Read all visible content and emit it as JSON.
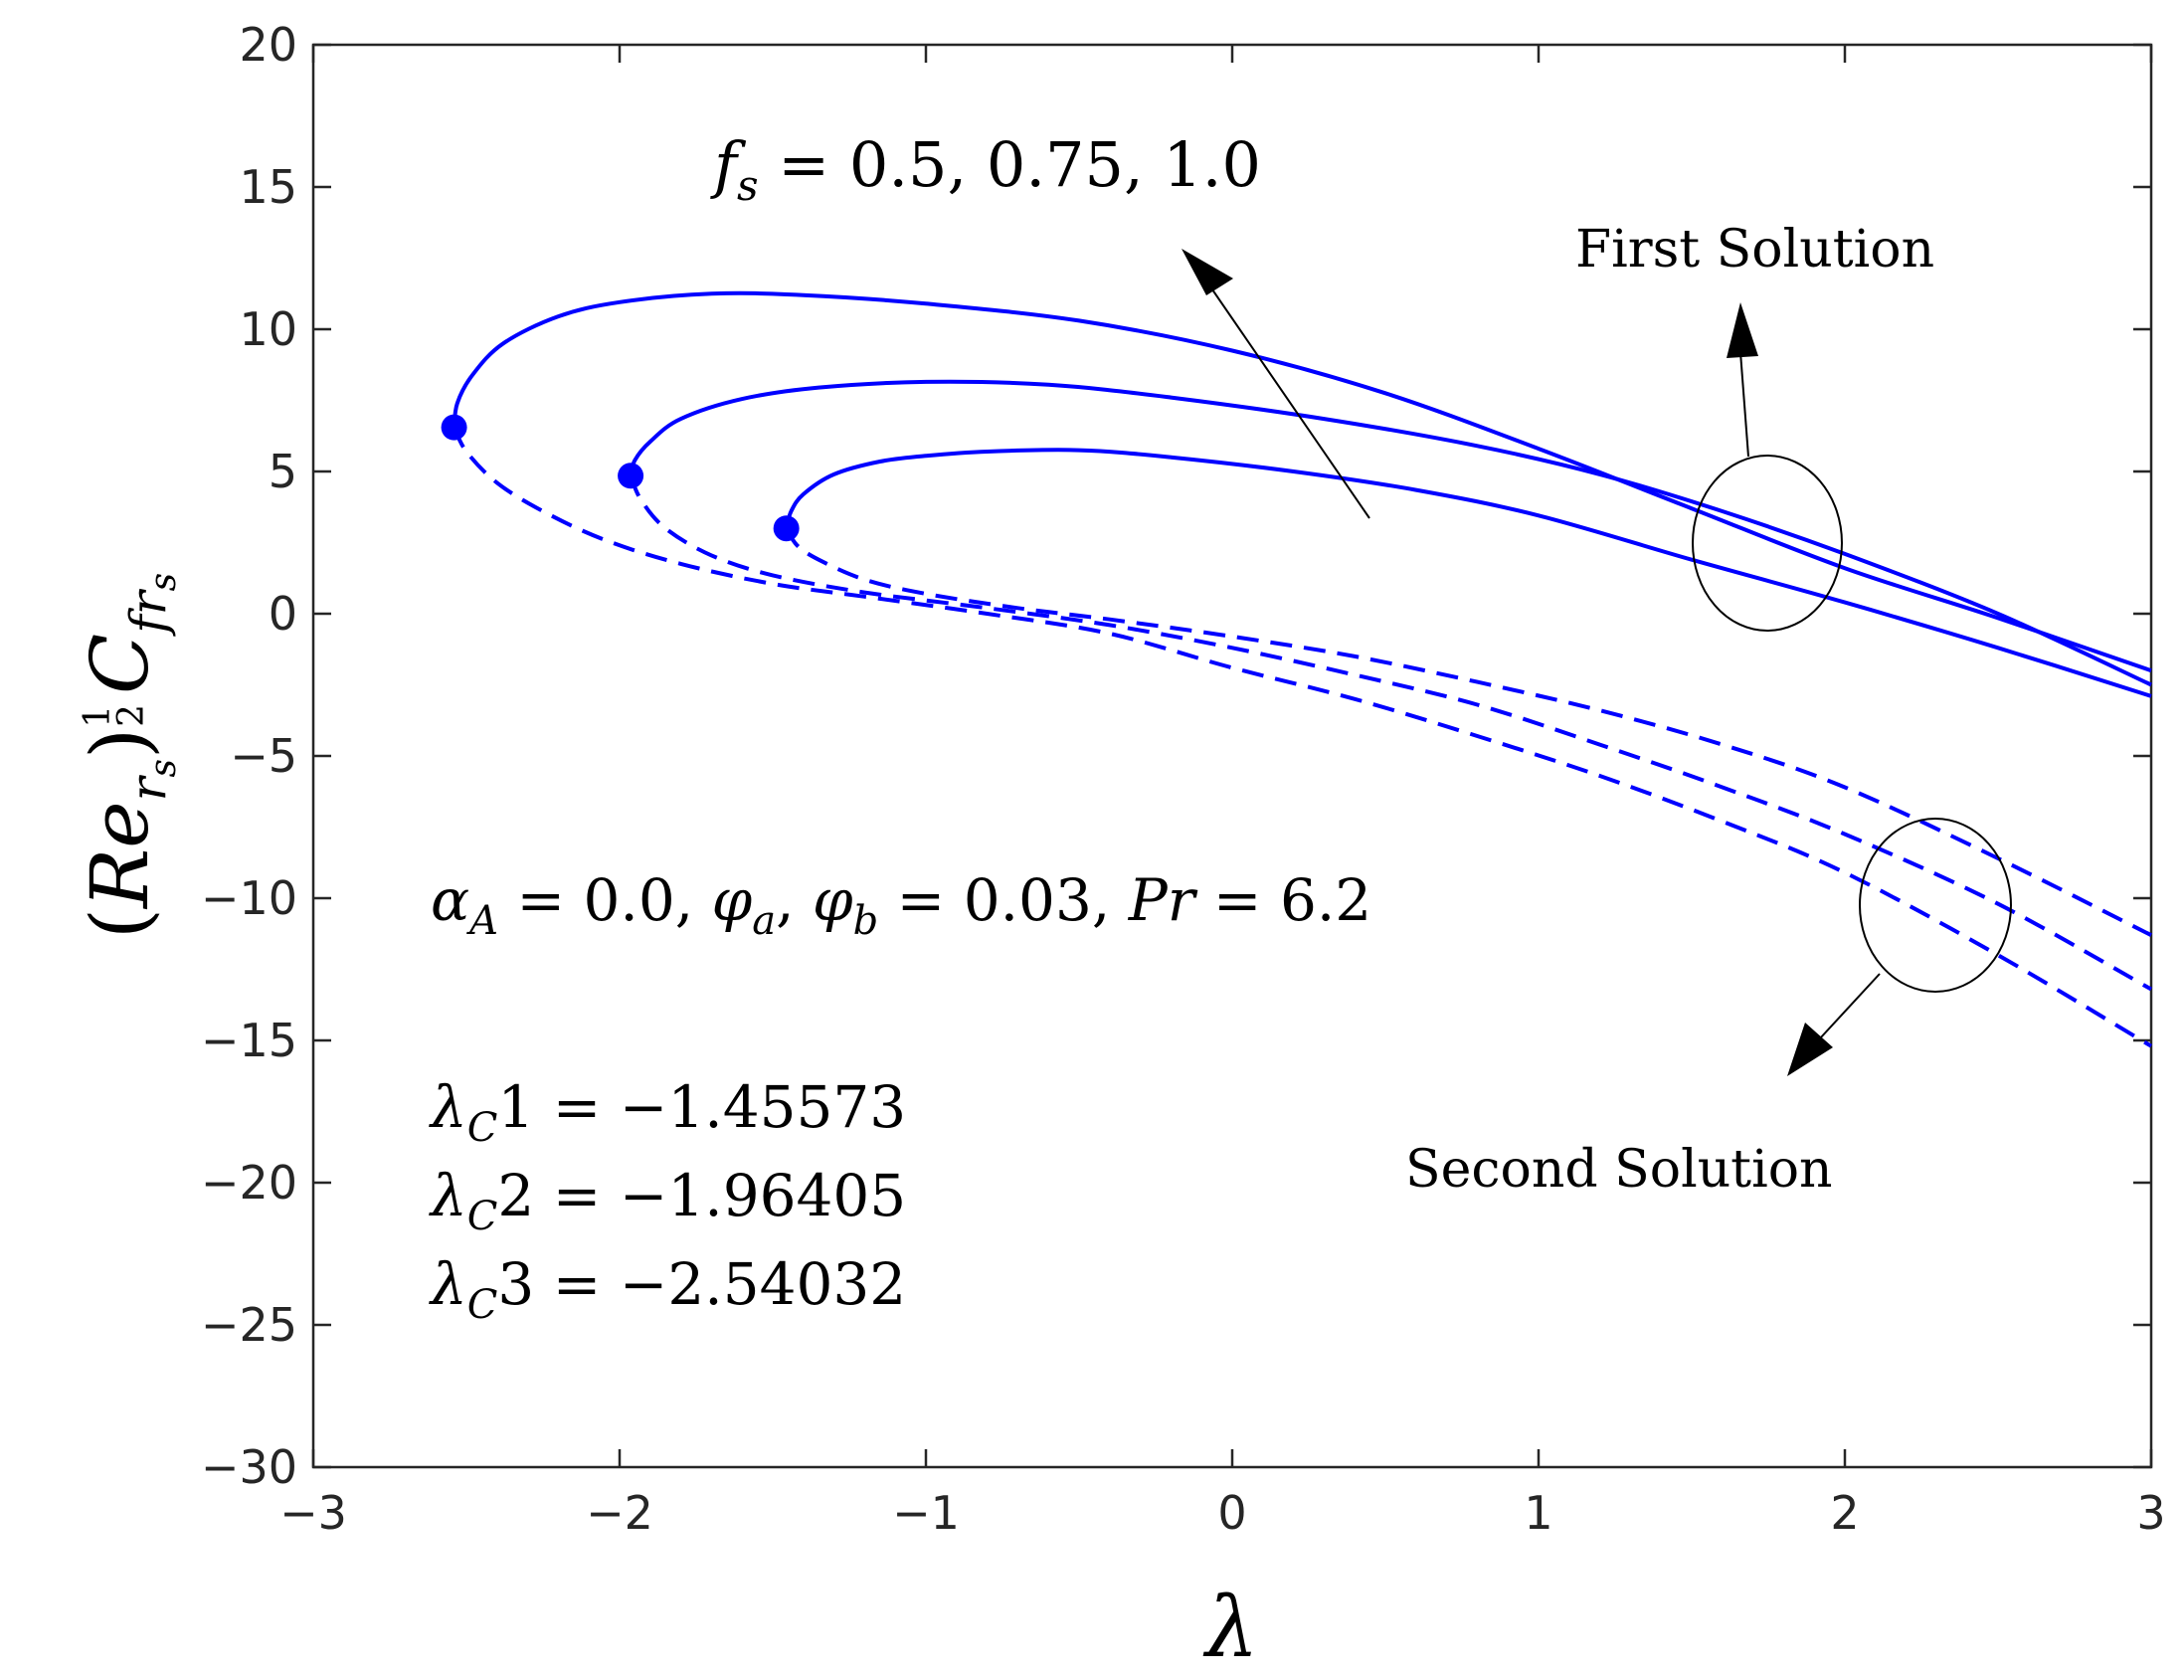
{
  "chart_data": {
    "type": "line",
    "title": "",
    "xlabel": "λ",
    "ylabel": {
      "base": "(Re",
      "base_sub": "r",
      "base_subsub": "s",
      "close": ")",
      "exp_num": "1",
      "exp_den": "2",
      "coef": "C",
      "coef_sub": "fr",
      "coef_subsub": "s"
    },
    "xlim": [
      -3,
      3
    ],
    "ylim": [
      -30,
      20
    ],
    "xticks": [
      -3,
      -2,
      -1,
      0,
      1,
      2,
      3
    ],
    "yticks": [
      20,
      15,
      10,
      5,
      0,
      -5,
      -10,
      -15,
      -20,
      -25,
      -30
    ],
    "xtick_labels": [
      "−3",
      "−2",
      "−1",
      "0",
      "1",
      "2",
      "3"
    ],
    "ytick_labels": [
      "20",
      "15",
      "10",
      "5",
      "0",
      "−5",
      "−10",
      "−15",
      "−20",
      "−25",
      "−30"
    ],
    "grid": false,
    "color": "#0000ff",
    "series": [
      {
        "name": "f_s curve A, first solution",
        "style": "solid",
        "points": [
          [
            -1.456,
            3.0
          ],
          [
            -1.44,
            3.6
          ],
          [
            -1.4,
            4.2
          ],
          [
            -1.3,
            4.9
          ],
          [
            -1.15,
            5.35
          ],
          [
            -1.0,
            5.55
          ],
          [
            -0.8,
            5.7
          ],
          [
            -0.5,
            5.75
          ],
          [
            -0.2,
            5.5
          ],
          [
            0.2,
            5.0
          ],
          [
            0.6,
            4.35
          ],
          [
            1.0,
            3.45
          ],
          [
            1.5,
            1.9
          ],
          [
            2.0,
            0.4
          ],
          [
            2.5,
            -1.2
          ],
          [
            3.0,
            -2.9
          ]
        ]
      },
      {
        "name": "f_s curve B, first solution",
        "style": "solid",
        "points": [
          [
            -1.964,
            4.85
          ],
          [
            -1.95,
            5.4
          ],
          [
            -1.9,
            6.05
          ],
          [
            -1.8,
            6.85
          ],
          [
            -1.6,
            7.55
          ],
          [
            -1.35,
            7.95
          ],
          [
            -1.0,
            8.15
          ],
          [
            -0.6,
            8.05
          ],
          [
            -0.2,
            7.6
          ],
          [
            0.3,
            6.85
          ],
          [
            0.8,
            5.9
          ],
          [
            1.2,
            4.9
          ],
          [
            1.6,
            3.6
          ],
          [
            2.0,
            2.1
          ],
          [
            2.5,
            0.0
          ],
          [
            3.0,
            -2.5
          ]
        ]
      },
      {
        "name": "f_s curve C, first solution",
        "style": "solid",
        "points": [
          [
            -2.54,
            6.55
          ],
          [
            -2.53,
            7.4
          ],
          [
            -2.48,
            8.4
          ],
          [
            -2.38,
            9.5
          ],
          [
            -2.2,
            10.45
          ],
          [
            -2.0,
            10.95
          ],
          [
            -1.7,
            11.25
          ],
          [
            -1.4,
            11.2
          ],
          [
            -1.0,
            10.9
          ],
          [
            -0.5,
            10.3
          ],
          [
            0.0,
            9.25
          ],
          [
            0.5,
            7.75
          ],
          [
            1.0,
            5.8
          ],
          [
            1.5,
            3.7
          ],
          [
            2.0,
            1.6
          ],
          [
            2.5,
            -0.15
          ],
          [
            3.0,
            -2.0
          ]
        ]
      },
      {
        "name": "f_s curve A, second solution",
        "style": "dashed",
        "points": [
          [
            -1.456,
            3.0
          ],
          [
            -1.42,
            2.4
          ],
          [
            -1.35,
            1.9
          ],
          [
            -1.2,
            1.2
          ],
          [
            -1.0,
            0.7
          ],
          [
            -0.7,
            0.2
          ],
          [
            -0.4,
            -0.2
          ],
          [
            0.0,
            -0.8
          ],
          [
            0.4,
            -1.5
          ],
          [
            0.8,
            -2.4
          ],
          [
            1.2,
            -3.4
          ],
          [
            1.6,
            -4.6
          ],
          [
            2.0,
            -6.1
          ],
          [
            2.5,
            -8.6
          ],
          [
            3.0,
            -11.3
          ]
        ]
      },
      {
        "name": "f_s curve B, second solution",
        "style": "dashed",
        "points": [
          [
            -1.964,
            4.85
          ],
          [
            -1.93,
            4.0
          ],
          [
            -1.85,
            3.0
          ],
          [
            -1.7,
            2.05
          ],
          [
            -1.5,
            1.35
          ],
          [
            -1.2,
            0.75
          ],
          [
            -0.8,
            0.2
          ],
          [
            -0.4,
            -0.4
          ],
          [
            0.0,
            -1.2
          ],
          [
            0.4,
            -2.15
          ],
          [
            0.8,
            -3.2
          ],
          [
            1.2,
            -4.6
          ],
          [
            1.6,
            -6.1
          ],
          [
            2.0,
            -7.75
          ],
          [
            2.5,
            -10.2
          ],
          [
            3.0,
            -13.2
          ]
        ]
      },
      {
        "name": "f_s curve C, second solution",
        "style": "dashed",
        "points": [
          [
            -2.54,
            6.55
          ],
          [
            -2.5,
            5.7
          ],
          [
            -2.4,
            4.6
          ],
          [
            -2.25,
            3.6
          ],
          [
            -2.05,
            2.6
          ],
          [
            -1.8,
            1.75
          ],
          [
            -1.5,
            1.05
          ],
          [
            -1.2,
            0.6
          ],
          [
            -0.8,
            0.0
          ],
          [
            -0.4,
            -0.7
          ],
          [
            0.0,
            -1.9
          ],
          [
            0.4,
            -3.0
          ],
          [
            0.8,
            -4.3
          ],
          [
            1.2,
            -5.7
          ],
          [
            1.6,
            -7.3
          ],
          [
            2.0,
            -9.1
          ],
          [
            2.5,
            -12.0
          ],
          [
            3.0,
            -15.2
          ]
        ]
      }
    ],
    "critical_points": [
      {
        "x": -1.45573,
        "y": 3.0
      },
      {
        "x": -1.96405,
        "y": 4.85
      },
      {
        "x": -2.54032,
        "y": 6.55
      }
    ],
    "annotations": {
      "fs_label": "f_s = 0.5, 0.75, 1.0",
      "fs_label_parts": {
        "var": "f",
        "sub": "s",
        "rest": " = 0.5, 0.75, 1.0"
      },
      "first_solution": "First Solution",
      "second_solution": "Second Solution",
      "params": {
        "alpha": "α",
        "alpha_sub": "A",
        "alpha_val": " = 0.0, ",
        "phi": "φ",
        "phi_a_sub": "a",
        "phi_b_sub": "b",
        "phi_val": " = 0.03, ",
        "pr": "Pr",
        "pr_val": " = 6.2"
      },
      "critical_values": [
        {
          "sym": "λ",
          "sub": "C",
          "idx": "1",
          "val": " = −1.45573"
        },
        {
          "sym": "λ",
          "sub": "C",
          "idx": "2",
          "val": " = −1.96405"
        },
        {
          "sym": "λ",
          "sub": "C",
          "idx": "3",
          "val": " = −2.54032"
        }
      ]
    }
  }
}
